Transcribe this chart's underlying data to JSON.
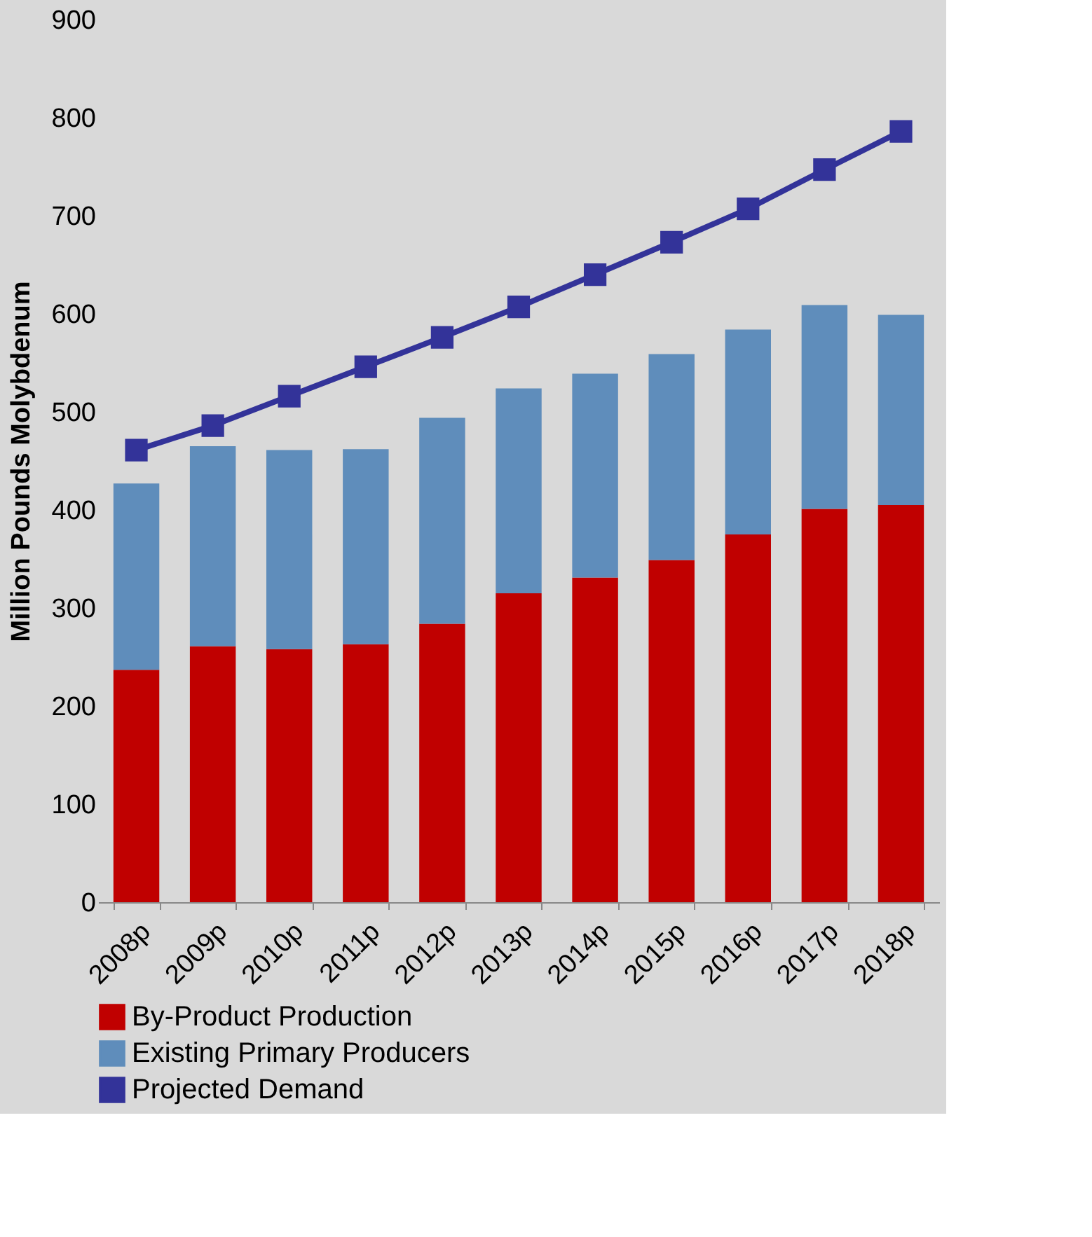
{
  "chart_data": {
    "type": "bar",
    "stacked": true,
    "ylabel": "Million Pounds Molybdenum",
    "categories": [
      "2008p",
      "2009p",
      "2010p",
      "2011p",
      "2012p",
      "2013p",
      "2014p",
      "2015p",
      "2016p",
      "2017p",
      "2018p"
    ],
    "series": [
      {
        "name": "By-Product Production",
        "color": "#c00000",
        "values": [
          237,
          261,
          258,
          263,
          284,
          315,
          331,
          349,
          375,
          401,
          405
        ]
      },
      {
        "name": "Existing Primary Producers",
        "color": "#5f8dbb",
        "values": [
          190,
          204,
          203,
          199,
          210,
          209,
          208,
          210,
          209,
          208,
          194
        ]
      },
      {
        "name": "Projected Demand",
        "type": "line",
        "color": "#333399",
        "marker": "square",
        "values": [
          461,
          486,
          516,
          546,
          576,
          607,
          640,
          673,
          707,
          747,
          786
        ]
      }
    ],
    "ylim": [
      0,
      900
    ],
    "yticks": [
      0,
      100,
      200,
      300,
      400,
      500,
      600,
      700,
      800,
      900
    ],
    "legend": "bottom"
  }
}
